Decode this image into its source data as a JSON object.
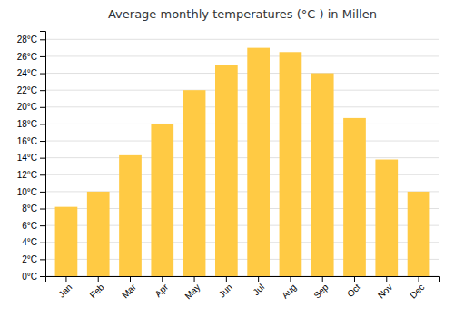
{
  "chart_data": {
    "type": "bar",
    "title": "Average monthly temperatures (°C ) in Millen",
    "categories": [
      "Jan",
      "Feb",
      "Mar",
      "Apr",
      "May",
      "Jun",
      "Jul",
      "Aug",
      "Sep",
      "Oct",
      "Nov",
      "Dec"
    ],
    "values": [
      8.2,
      10.0,
      14.3,
      18.0,
      22.0,
      25.0,
      27.0,
      26.5,
      24.0,
      18.7,
      13.8,
      10.0
    ],
    "color": "#FFCA44",
    "ylim": [
      0,
      29
    ],
    "yticks": [
      {
        "value": 0,
        "label": "0°C"
      },
      {
        "value": 2,
        "label": "2°C"
      },
      {
        "value": 4,
        "label": "4°C"
      },
      {
        "value": 6,
        "label": "6°C"
      },
      {
        "value": 8,
        "label": "8°C"
      },
      {
        "value": 10,
        "label": "10°C"
      },
      {
        "value": 12,
        "label": "12°C"
      },
      {
        "value": 14,
        "label": "14°C"
      },
      {
        "value": 16,
        "label": "16°C"
      },
      {
        "value": 18,
        "label": "18°C"
      },
      {
        "value": 20,
        "label": "20°C"
      },
      {
        "value": 22,
        "label": "22°C"
      },
      {
        "value": 24,
        "label": "24°C"
      },
      {
        "value": 26,
        "label": "26°C"
      },
      {
        "value": 28,
        "label": "28°C"
      }
    ],
    "grid": true
  }
}
